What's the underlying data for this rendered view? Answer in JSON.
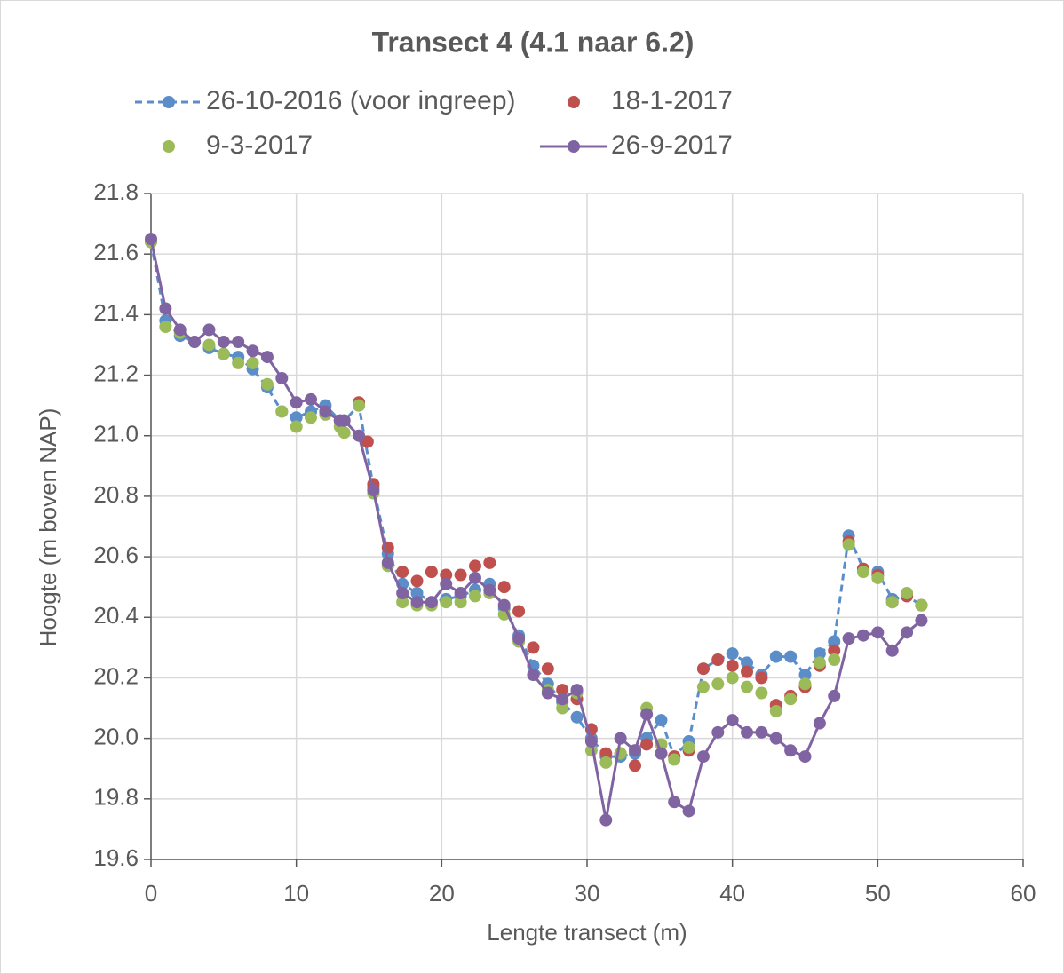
{
  "chart_data": {
    "type": "line",
    "title": "Transect 4 (4.1 naar 6.2)",
    "x_label": "Lengte transect (m)",
    "y_label": "Hoogte (m boven NAP)",
    "xlim": [
      0,
      60
    ],
    "xticks": [
      0,
      10,
      20,
      30,
      40,
      50,
      60
    ],
    "ylim": [
      19.6,
      21.8
    ],
    "yticks": [
      19.6,
      19.8,
      {
        "value": 20,
        "label": "20.0"
      },
      20.2,
      20.4,
      20.6,
      20.8,
      {
        "value": 21,
        "label": "21.0"
      },
      21.2,
      21.4,
      21.6,
      21.8
    ],
    "grid": true,
    "x": [
      0,
      1,
      2,
      3,
      4,
      5,
      6,
      7,
      8,
      9,
      10,
      11,
      12,
      13,
      13.3,
      14.3,
      15.3,
      16.3,
      17.3,
      18.3,
      19.3,
      20.3,
      21.3,
      22.3,
      23.3,
      24.3,
      25.3,
      26.3,
      27.3,
      28.3,
      29.3,
      30.3,
      31.3,
      32.3,
      33.3,
      34.1,
      35.1,
      36,
      37,
      38,
      39,
      40,
      41,
      42,
      43,
      44,
      45,
      46,
      47,
      48,
      49,
      50,
      51,
      52,
      53
    ],
    "series": [
      {
        "name": "26-10-2016 (voor ingreep)",
        "color": "#5b8ec9",
        "line": "dashed",
        "values": [
          21.64,
          21.38,
          21.33,
          21.31,
          21.29,
          21.27,
          21.26,
          21.22,
          21.16,
          21.08,
          21.06,
          21.08,
          21.1,
          21.05,
          21.05,
          21.1,
          20.83,
          20.61,
          20.51,
          20.48,
          20.45,
          20.46,
          20.47,
          20.49,
          20.51,
          20.43,
          20.34,
          20.24,
          20.18,
          20.12,
          20.07,
          20.0,
          19.94,
          19.94,
          19.95,
          20.0,
          20.06,
          19.94,
          19.99,
          20.23,
          20.26,
          20.28,
          20.25,
          20.21,
          20.27,
          20.27,
          20.21,
          20.28,
          20.32,
          20.67,
          20.56,
          20.55,
          20.46,
          20.47,
          20.44
        ]
      },
      {
        "name": "18-1-2017",
        "color": "#c0504d",
        "line": "none",
        "x": [
          14.3,
          14.9,
          15.3,
          16.3,
          17.3,
          18.3,
          19.3,
          20.3,
          21.3,
          22.3,
          23.3,
          24.3,
          25.3,
          26.3,
          27.3,
          28.3,
          29.3,
          30.3,
          31.3,
          32.3,
          33.3,
          34.1,
          35.1,
          36,
          37,
          38,
          39,
          40,
          41,
          42,
          43,
          44,
          45,
          46,
          47,
          48,
          49,
          50,
          51,
          52,
          53
        ],
        "values": [
          21.11,
          20.98,
          20.84,
          20.63,
          20.55,
          20.52,
          20.55,
          20.54,
          20.54,
          20.57,
          20.58,
          20.5,
          20.42,
          20.3,
          20.23,
          20.16,
          20.13,
          20.03,
          19.95,
          19.95,
          19.91,
          19.98,
          19.95,
          19.94,
          19.96,
          20.23,
          20.26,
          20.24,
          20.22,
          20.2,
          20.11,
          20.14,
          20.17,
          20.24,
          20.29,
          20.65,
          20.56,
          20.54,
          20.45,
          20.47,
          20.44
        ]
      },
      {
        "name": "9-3-2017",
        "color": "#9bbb59",
        "line": "none",
        "values": [
          21.64,
          21.36,
          21.34,
          21.31,
          21.3,
          21.27,
          21.24,
          21.24,
          21.17,
          21.08,
          21.03,
          21.06,
          21.07,
          21.03,
          21.01,
          21.1,
          20.81,
          20.57,
          20.45,
          20.44,
          20.44,
          20.45,
          20.45,
          20.47,
          20.48,
          20.41,
          20.32,
          20.21,
          20.16,
          20.1,
          20.15,
          19.96,
          19.92,
          19.95,
          19.96,
          20.1,
          19.98,
          19.93,
          19.97,
          20.17,
          20.18,
          20.2,
          20.17,
          20.15,
          20.09,
          20.13,
          20.18,
          20.25,
          20.26,
          20.64,
          20.55,
          20.53,
          20.45,
          20.48,
          20.44
        ]
      },
      {
        "name": "26-9-2017",
        "color": "#8064a2",
        "line": "solid",
        "values": [
          21.65,
          21.42,
          21.35,
          21.31,
          21.35,
          21.31,
          21.31,
          21.28,
          21.26,
          21.19,
          21.11,
          21.12,
          21.08,
          21.05,
          21.05,
          21.0,
          20.82,
          20.58,
          20.48,
          20.45,
          20.45,
          20.51,
          20.48,
          20.53,
          20.49,
          20.44,
          20.33,
          20.21,
          20.15,
          20.13,
          20.16,
          19.99,
          19.73,
          20.0,
          19.96,
          20.08,
          19.95,
          19.79,
          19.76,
          19.94,
          20.02,
          20.06,
          20.02,
          20.02,
          20.0,
          19.96,
          19.94,
          20.05,
          20.14,
          20.33,
          20.34,
          20.35,
          20.29,
          20.35,
          20.39
        ]
      }
    ]
  }
}
